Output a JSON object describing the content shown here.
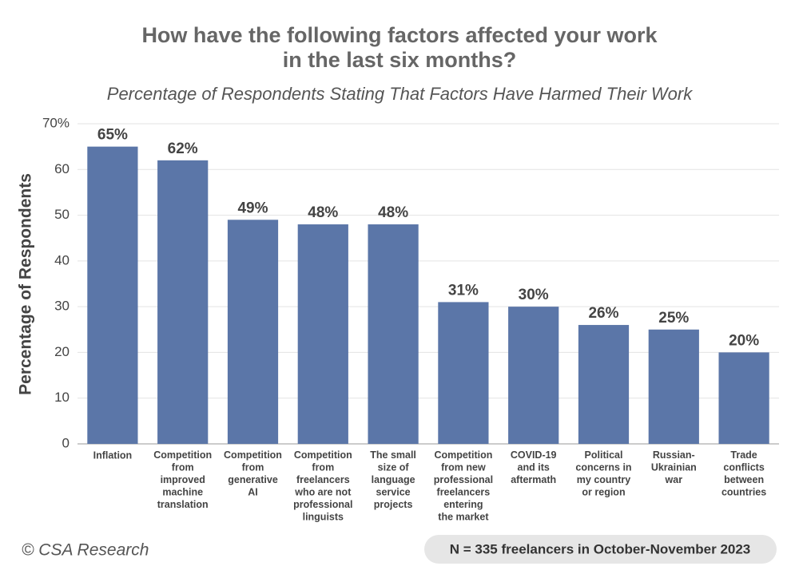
{
  "chart_data": {
    "type": "bar",
    "title": "How have the following factors affected your work\nin the last six months?",
    "subtitle": "Percentage of Respondents Stating That Factors Have Harmed Their Work",
    "y_label": "Percentage of Respondents",
    "categories": [
      "Inflation",
      "Competition\nfrom\nimproved\nmachine\ntranslation",
      "Competition\nfrom\ngenerative\nAI",
      "Competition\nfrom\nfreelancers\nwho are not\nprofessional\nlinguists",
      "The small\nsize of\nlanguage\nservice\nprojects",
      "Competition\nfrom new\nprofessional\nfreelancers\nentering\nthe market",
      "COVID-19\nand its\naftermath",
      "Political\nconcerns in\nmy country\nor region",
      "Russian-\nUkrainian\nwar",
      "Trade\nconflicts\nbetween\ncountries"
    ],
    "values": [
      65,
      62,
      49,
      48,
      48,
      31,
      30,
      26,
      25,
      20
    ],
    "value_labels": [
      "65%",
      "62%",
      "49%",
      "48%",
      "48%",
      "31%",
      "30%",
      "26%",
      "25%",
      "20%"
    ],
    "color": "#5b76a8",
    "ylim": [
      0,
      70
    ],
    "yticks": [
      0,
      10,
      20,
      30,
      40,
      50,
      60,
      {
        "value": 70,
        "label": "70%"
      }
    ],
    "grid": true,
    "credit": "© CSA Research",
    "note": "N = 335 freelancers in October-November 2023"
  }
}
